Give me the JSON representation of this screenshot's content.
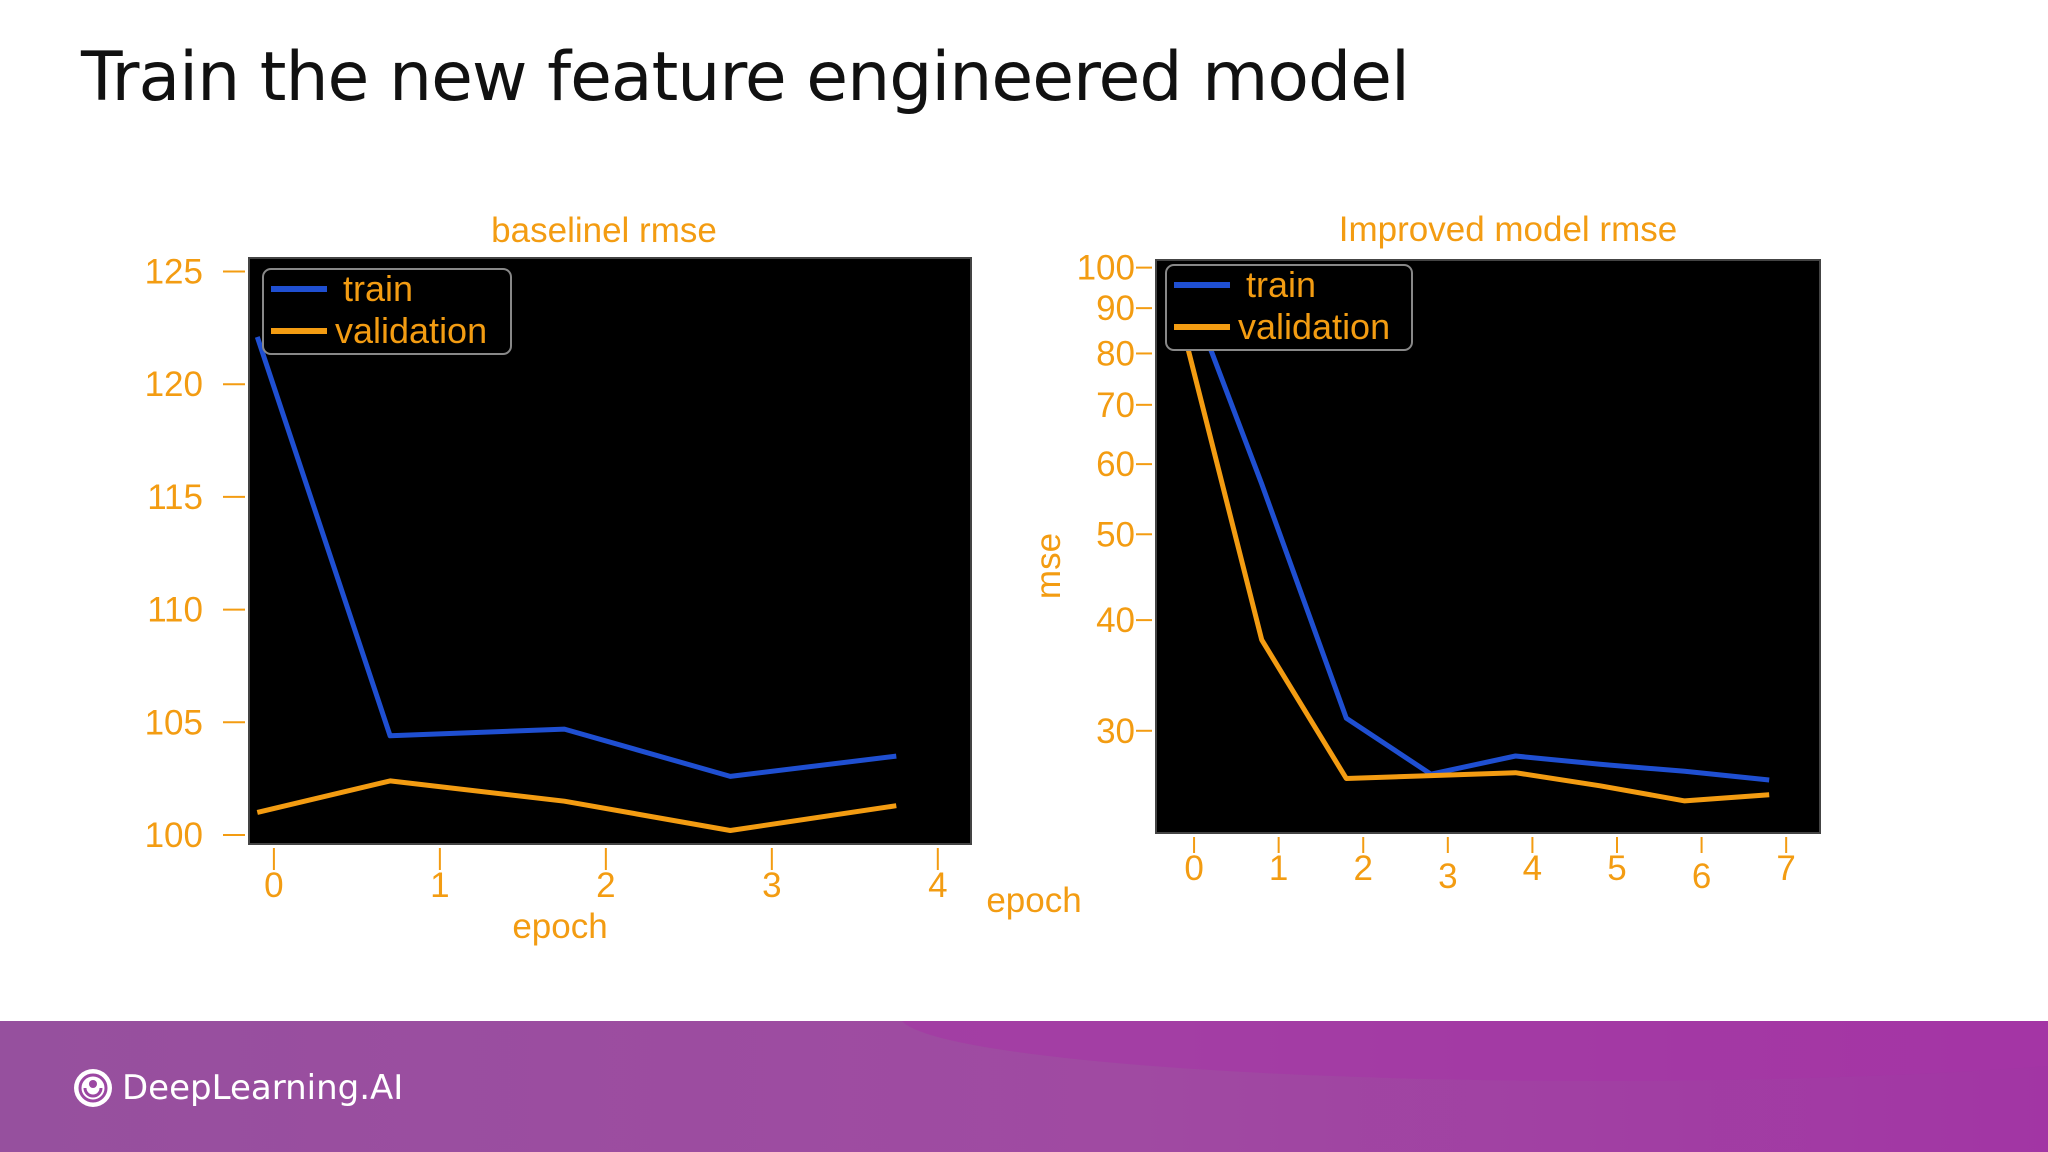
{
  "slide": {
    "title": "Train the new feature engineered model"
  },
  "footer": {
    "brand_name": "DeepLearning.AI",
    "logo_icon": "deeplearning-ai-logo-icon"
  },
  "colors": {
    "train": "#1f4fd1",
    "validation": "#f39c12",
    "plot_bg": "#000000",
    "label": "#f39c12"
  },
  "chart_data": [
    {
      "type": "line",
      "title": "baselinel rmse",
      "xlabel": "epoch",
      "ylabel": "",
      "legend": "top-left",
      "xlim": [
        -0.15,
        4.2
      ],
      "ylim": [
        99.6,
        125.6
      ],
      "xticks": [
        0,
        1,
        2,
        3,
        4
      ],
      "yticks": [
        100,
        105,
        110,
        115,
        120,
        125
      ],
      "series": [
        {
          "name": "train",
          "x": [
            -0.1,
            0.7,
            1.75,
            2.75,
            3.75
          ],
          "y": [
            122.1,
            104.4,
            104.7,
            102.6,
            103.5
          ]
        },
        {
          "name": "validation",
          "x": [
            -0.1,
            0.7,
            1.75,
            2.75,
            3.75
          ],
          "y": [
            101.0,
            102.4,
            101.5,
            100.2,
            101.3
          ]
        }
      ]
    },
    {
      "type": "line",
      "title": "Improved model rmse",
      "xlabel": "epoch",
      "ylabel": "mse",
      "legend": "top-left",
      "yscale": "log",
      "xlim": [
        -0.45,
        7.4
      ],
      "ylim": [
        23,
        102
      ],
      "xticks": [
        0,
        1,
        2,
        3,
        4,
        5,
        6,
        7
      ],
      "yticks": [
        30,
        40,
        50,
        60,
        70,
        80,
        90,
        100
      ],
      "series": [
        {
          "name": "train",
          "x": [
            0.05,
            0.8,
            1.8,
            2.8,
            3.8,
            4.8,
            5.8,
            6.8
          ],
          "y": [
            88,
            57,
            31,
            26.8,
            28.1,
            27.5,
            27.0,
            26.4
          ]
        },
        {
          "name": "validation",
          "x": [
            -0.1,
            0.8,
            1.8,
            2.8,
            3.8,
            4.8,
            5.8,
            6.8
          ],
          "y": [
            83,
            38,
            26.5,
            26.7,
            26.9,
            26.0,
            25.0,
            25.4
          ]
        }
      ]
    }
  ]
}
